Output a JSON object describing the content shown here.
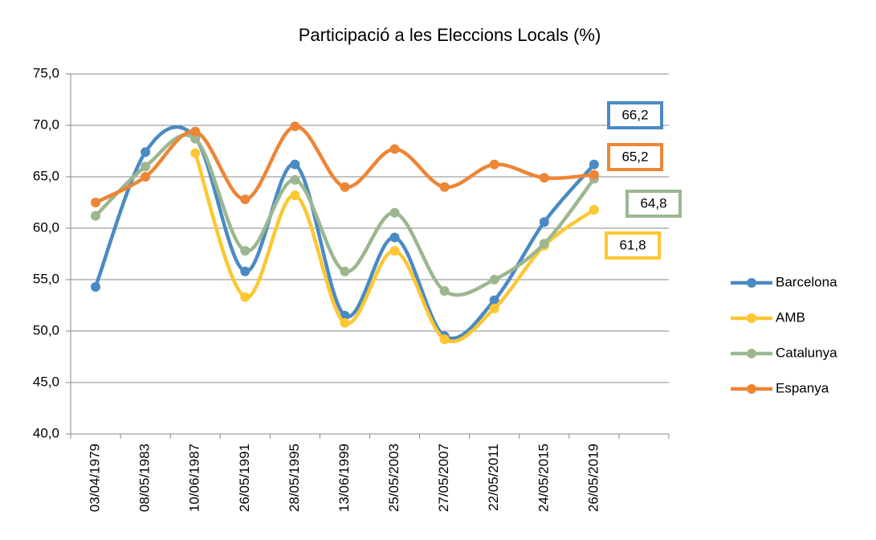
{
  "chart_data": {
    "type": "line",
    "title": "Participació a les Eleccions Locals (%)",
    "categories": [
      "03/04/1979",
      "08/05/1983",
      "10/06/1987",
      "26/05/1991",
      "28/05/1995",
      "13/06/1999",
      "25/05/2003",
      "27/05/2007",
      "22/05/2011",
      "24/05/2015",
      "26/05/2019",
      null
    ],
    "series": [
      {
        "name": "Barcelona",
        "color": "#4a8ac4",
        "values": [
          54.3,
          67.4,
          68.8,
          55.8,
          66.2,
          51.5,
          59.1,
          49.5,
          53.0,
          60.6,
          66.2,
          null
        ],
        "value_labels": [
          null,
          null,
          null,
          null,
          null,
          null,
          null,
          null,
          null,
          null,
          "66,2",
          null
        ]
      },
      {
        "name": "AMB",
        "color": "#fdc731",
        "values": [
          null,
          null,
          67.3,
          53.3,
          63.2,
          50.8,
          57.8,
          49.2,
          52.2,
          58.3,
          61.8,
          null
        ],
        "value_labels": [
          null,
          null,
          null,
          null,
          null,
          null,
          null,
          null,
          null,
          null,
          "61,8",
          null
        ]
      },
      {
        "name": "Catalunya",
        "color": "#9cb790",
        "values": [
          61.2,
          66.0,
          68.7,
          57.8,
          64.7,
          55.8,
          61.5,
          53.9,
          55.0,
          58.5,
          64.8,
          null
        ],
        "value_labels": [
          null,
          null,
          null,
          null,
          null,
          null,
          null,
          null,
          null,
          null,
          "64,8",
          null
        ]
      },
      {
        "name": "Espanya",
        "color": "#ee8535",
        "values": [
          62.5,
          65.0,
          69.4,
          62.8,
          69.9,
          64.0,
          67.7,
          64.0,
          66.2,
          64.9,
          65.2,
          null
        ],
        "value_labels": [
          null,
          null,
          null,
          null,
          null,
          null,
          null,
          null,
          null,
          null,
          "65,2",
          null
        ]
      }
    ],
    "ylim": [
      40,
      75
    ],
    "yticks": [
      {
        "value": 40,
        "label": "40,0"
      },
      {
        "value": 45,
        "label": "45,0"
      },
      {
        "value": 50,
        "label": "50,0"
      },
      {
        "value": 55,
        "label": "55,0"
      },
      {
        "value": 60,
        "label": "60,0"
      },
      {
        "value": 65,
        "label": "65,0"
      },
      {
        "value": 70,
        "label": "70,0"
      },
      {
        "value": 75,
        "label": "75,0"
      }
    ],
    "grid": true,
    "legend": "right"
  }
}
